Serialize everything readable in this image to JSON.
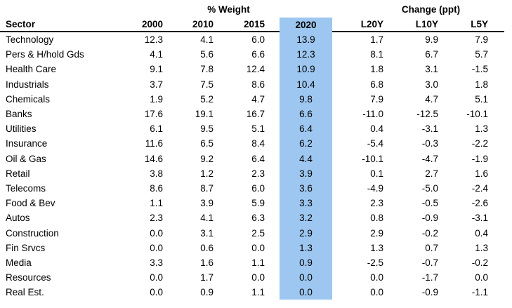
{
  "chart_data": {
    "type": "table",
    "group_headers": {
      "weight": "% Weight",
      "change": "Change (ppt)"
    },
    "columns": {
      "sector": "Sector",
      "y2000": "2000",
      "y2010": "2010",
      "y2015": "2015",
      "y2020": "2020",
      "l20y": "L20Y",
      "l10y": "L10Y",
      "l5y": "L5Y"
    },
    "highlight": {
      "column": "2020",
      "color": "#9DC7F0"
    },
    "rows": [
      {
        "sector": "Technology",
        "values": [
          "12.3",
          "4.1",
          "6.0",
          "13.9",
          "1.7",
          "9.9",
          "7.9"
        ]
      },
      {
        "sector": "Pers & H/hold Gds",
        "values": [
          "4.1",
          "5.6",
          "6.6",
          "12.3",
          "8.1",
          "6.7",
          "5.7"
        ]
      },
      {
        "sector": "Health Care",
        "values": [
          "9.1",
          "7.8",
          "12.4",
          "10.9",
          "1.8",
          "3.1",
          "-1.5"
        ]
      },
      {
        "sector": "Industrials",
        "values": [
          "3.7",
          "7.5",
          "8.6",
          "10.4",
          "6.8",
          "3.0",
          "1.8"
        ]
      },
      {
        "sector": "Chemicals",
        "values": [
          "1.9",
          "5.2",
          "4.7",
          "9.8",
          "7.9",
          "4.7",
          "5.1"
        ]
      },
      {
        "sector": "Banks",
        "values": [
          "17.6",
          "19.1",
          "16.7",
          "6.6",
          "-11.0",
          "-12.5",
          "-10.1"
        ]
      },
      {
        "sector": "Utilities",
        "values": [
          "6.1",
          "9.5",
          "5.1",
          "6.4",
          "0.4",
          "-3.1",
          "1.3"
        ]
      },
      {
        "sector": "Insurance",
        "values": [
          "11.6",
          "6.5",
          "8.4",
          "6.2",
          "-5.4",
          "-0.3",
          "-2.2"
        ]
      },
      {
        "sector": "Oil & Gas",
        "values": [
          "14.6",
          "9.2",
          "6.4",
          "4.4",
          "-10.1",
          "-4.7",
          "-1.9"
        ]
      },
      {
        "sector": "Retail",
        "values": [
          "3.8",
          "1.2",
          "2.3",
          "3.9",
          "0.1",
          "2.7",
          "1.6"
        ]
      },
      {
        "sector": "Telecoms",
        "values": [
          "8.6",
          "8.7",
          "6.0",
          "3.6",
          "-4.9",
          "-5.0",
          "-2.4"
        ]
      },
      {
        "sector": "Food & Bev",
        "values": [
          "1.1",
          "3.9",
          "5.9",
          "3.3",
          "2.3",
          "-0.5",
          "-2.6"
        ]
      },
      {
        "sector": "Autos",
        "values": [
          "2.3",
          "4.1",
          "6.3",
          "3.2",
          "0.8",
          "-0.9",
          "-3.1"
        ]
      },
      {
        "sector": "Construction",
        "values": [
          "0.0",
          "3.1",
          "2.5",
          "2.9",
          "2.9",
          "-0.2",
          "0.4"
        ]
      },
      {
        "sector": "Fin Srvcs",
        "values": [
          "0.0",
          "0.6",
          "0.0",
          "1.3",
          "1.3",
          "0.7",
          "1.3"
        ]
      },
      {
        "sector": "Media",
        "values": [
          "3.3",
          "1.6",
          "1.1",
          "0.9",
          "-2.5",
          "-0.7",
          "-0.2"
        ]
      },
      {
        "sector": "Resources",
        "values": [
          "0.0",
          "1.7",
          "0.0",
          "0.0",
          "0.0",
          "-1.7",
          "0.0"
        ]
      },
      {
        "sector": "Real Est.",
        "values": [
          "0.0",
          "0.9",
          "1.1",
          "0.0",
          "0.0",
          "-0.9",
          "-1.1"
        ]
      }
    ]
  }
}
